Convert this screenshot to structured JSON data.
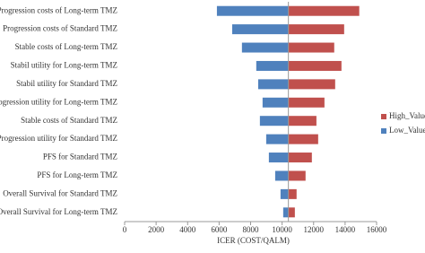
{
  "chart_data": {
    "type": "tornado",
    "x_label": "ICER (COST/QALM)",
    "categories": [
      "Progression costs of Long-term TMZ",
      "Progression costs of Standard TMZ",
      "Stable costs of Long-term TMZ",
      "Stabil utility for Long-term TMZ",
      "Stabil utility for Standard TMZ",
      "Progression utility for Long-term TMZ",
      "Stable costs of Standard TMZ",
      "Progression utility for Standard TMZ",
      "PFS for Standard TMZ",
      "PFS for Long-term TMZ",
      "Overall Survival for Standard TMZ",
      "Overall Survival for Long-term TMZ"
    ],
    "base_value": 10400,
    "series": [
      {
        "name": "High_Value",
        "color": "#c0504d",
        "values": [
          14900,
          13940,
          13310,
          13770,
          13370,
          12690,
          12180,
          12290,
          11890,
          11490,
          10920,
          10810
        ]
      },
      {
        "name": "Low_Value",
        "color": "#4f81bd",
        "values": [
          5860,
          6830,
          7450,
          8360,
          8480,
          8760,
          8590,
          8990,
          9160,
          9560,
          9900,
          10070
        ]
      }
    ],
    "xlim": [
      0,
      16000
    ],
    "xticks": [
      0,
      2000,
      4000,
      6000,
      8000,
      10000,
      12000,
      14000,
      16000
    ],
    "legend": "right"
  }
}
